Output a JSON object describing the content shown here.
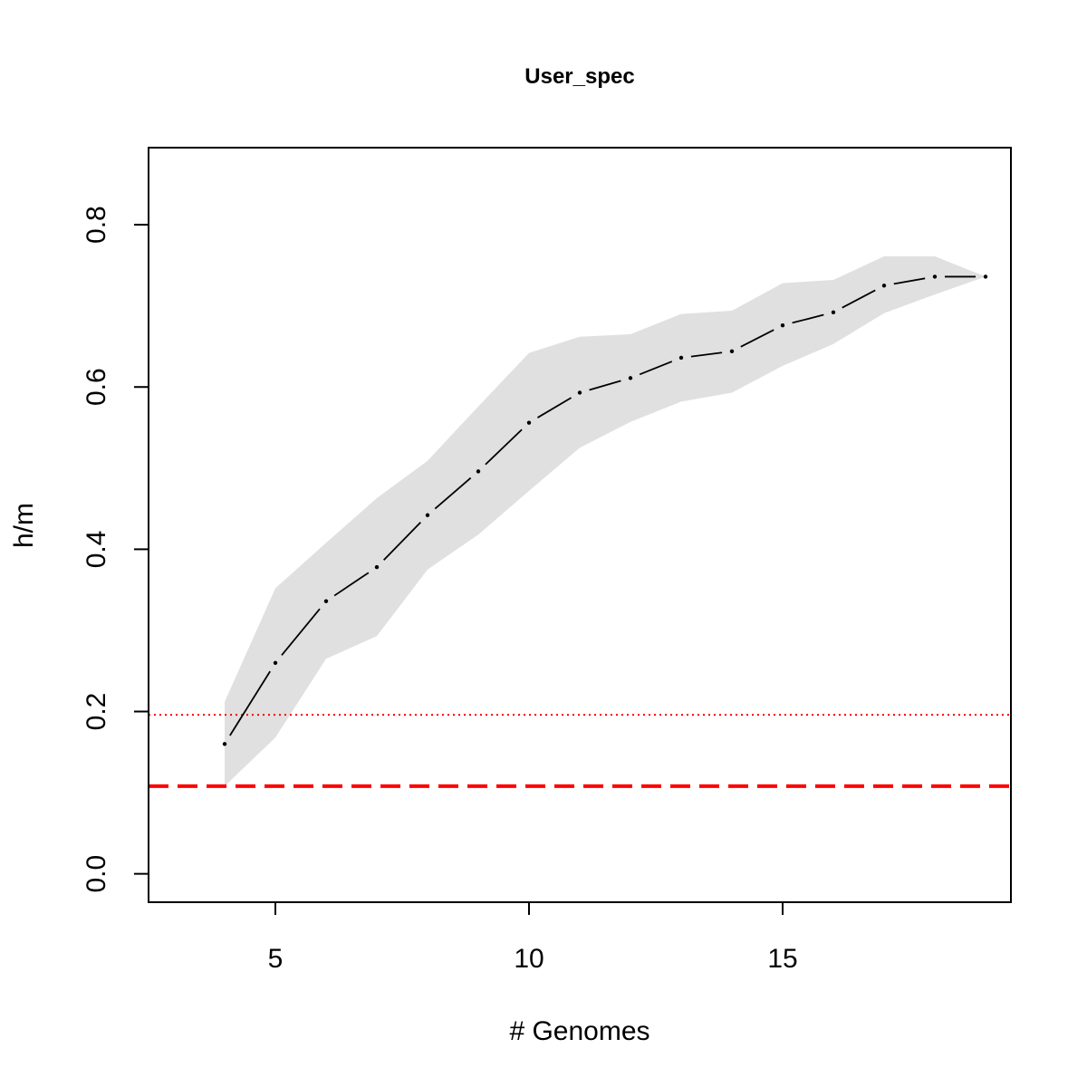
{
  "chart_data": {
    "type": "line",
    "title": "User_spec",
    "xlabel": "# Genomes",
    "ylabel": "h/m",
    "xlim": [
      2.5,
      19.5
    ],
    "ylim": [
      -0.035,
      0.895
    ],
    "x_ticks": [
      5,
      10,
      15
    ],
    "x_tick_labels": [
      "5",
      "10",
      "15"
    ],
    "y_ticks": [
      0.0,
      0.2,
      0.4,
      0.6,
      0.8
    ],
    "y_tick_labels": [
      "0.0",
      "0.2",
      "0.4",
      "0.6",
      "0.8"
    ],
    "grid": false,
    "legend": "none",
    "series": [
      {
        "style": "dashed line with point markers",
        "color": "#000000",
        "x": [
          4,
          5,
          6,
          7,
          8,
          9,
          10,
          11,
          12,
          13,
          14,
          15,
          16,
          17,
          18,
          19
        ],
        "y": [
          0.16,
          0.26,
          0.336,
          0.378,
          0.442,
          0.496,
          0.556,
          0.593,
          0.611,
          0.636,
          0.644,
          0.676,
          0.692,
          0.725,
          0.736,
          0.736
        ]
      }
    ],
    "band": {
      "color": "#e0e0e0",
      "x": [
        4,
        5,
        6,
        7,
        8,
        9,
        10,
        11,
        12,
        13,
        14,
        15,
        16,
        17,
        18,
        19
      ],
      "lower": [
        0.108,
        0.168,
        0.265,
        0.293,
        0.375,
        0.418,
        0.472,
        0.525,
        0.557,
        0.582,
        0.593,
        0.626,
        0.653,
        0.691,
        0.714,
        0.736
      ],
      "upper": [
        0.212,
        0.352,
        0.408,
        0.463,
        0.509,
        0.576,
        0.642,
        0.662,
        0.665,
        0.69,
        0.694,
        0.728,
        0.732,
        0.761,
        0.761,
        0.736
      ]
    },
    "reference_lines": [
      {
        "y": 0.196,
        "color": "#ff0000",
        "style": "dotted"
      },
      {
        "y": 0.108,
        "color": "#ff0000",
        "style": "dashed"
      }
    ]
  }
}
